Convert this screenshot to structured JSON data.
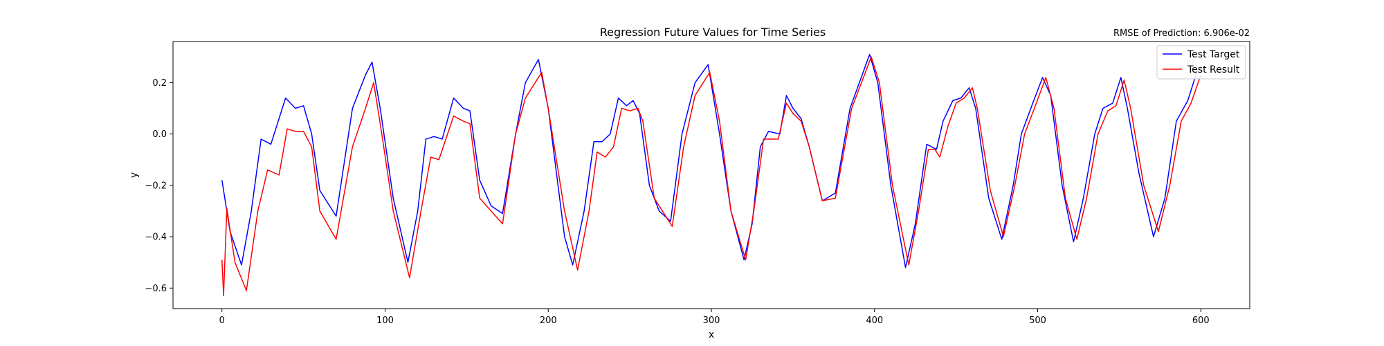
{
  "figure": {
    "title": "Regression Future Values for Time Series",
    "annotation": "RMSE of Prediction: 6.906e-02"
  },
  "chart_data": {
    "type": "line",
    "title": "Regression Future Values for Time Series",
    "xlabel": "x",
    "ylabel": "y",
    "xlim": [
      -30,
      630
    ],
    "ylim": [
      -0.68,
      0.36
    ],
    "xticks": [
      0,
      100,
      200,
      300,
      400,
      500,
      600
    ],
    "yticks": [
      -0.6,
      -0.4,
      -0.2,
      0.0,
      0.2
    ],
    "xtick_labels": [
      "0",
      "100",
      "200",
      "300",
      "400",
      "500",
      "600"
    ],
    "ytick_labels": [
      "−0.6",
      "−0.4",
      "−0.2",
      "0.0",
      "0.2"
    ],
    "grid": false,
    "legend_position": "top-right",
    "series": [
      {
        "name": "Test Target",
        "color": "#0000ff",
        "points": [
          [
            0,
            -0.18
          ],
          [
            5,
            -0.38
          ],
          [
            12,
            -0.51
          ],
          [
            18,
            -0.3
          ],
          [
            24,
            -0.02
          ],
          [
            30,
            -0.04
          ],
          [
            39,
            0.14
          ],
          [
            45,
            0.1
          ],
          [
            50,
            0.11
          ],
          [
            55,
            0.0
          ],
          [
            60,
            -0.22
          ],
          [
            70,
            -0.32
          ],
          [
            80,
            0.1
          ],
          [
            88,
            0.23
          ],
          [
            92,
            0.28
          ],
          [
            97,
            0.1
          ],
          [
            105,
            -0.25
          ],
          [
            114,
            -0.5
          ],
          [
            120,
            -0.3
          ],
          [
            125,
            -0.02
          ],
          [
            130,
            -0.01
          ],
          [
            135,
            -0.02
          ],
          [
            142,
            0.14
          ],
          [
            148,
            0.1
          ],
          [
            152,
            0.09
          ],
          [
            158,
            -0.18
          ],
          [
            165,
            -0.28
          ],
          [
            172,
            -0.31
          ],
          [
            180,
            0.0
          ],
          [
            186,
            0.2
          ],
          [
            194,
            0.29
          ],
          [
            200,
            0.1
          ],
          [
            210,
            -0.4
          ],
          [
            215,
            -0.51
          ],
          [
            222,
            -0.3
          ],
          [
            228,
            -0.03
          ],
          [
            233,
            -0.03
          ],
          [
            238,
            0.0
          ],
          [
            243,
            0.14
          ],
          [
            248,
            0.11
          ],
          [
            252,
            0.13
          ],
          [
            256,
            0.08
          ],
          [
            262,
            -0.2
          ],
          [
            268,
            -0.3
          ],
          [
            275,
            -0.34
          ],
          [
            282,
            0.0
          ],
          [
            290,
            0.2
          ],
          [
            298,
            0.27
          ],
          [
            305,
            0.0
          ],
          [
            312,
            -0.3
          ],
          [
            320,
            -0.49
          ],
          [
            325,
            -0.35
          ],
          [
            330,
            -0.05
          ],
          [
            335,
            0.01
          ],
          [
            342,
            0.0
          ],
          [
            346,
            0.15
          ],
          [
            350,
            0.1
          ],
          [
            355,
            0.06
          ],
          [
            360,
            -0.05
          ],
          [
            368,
            -0.26
          ],
          [
            376,
            -0.23
          ],
          [
            385,
            0.1
          ],
          [
            397,
            0.31
          ],
          [
            402,
            0.2
          ],
          [
            410,
            -0.2
          ],
          [
            419,
            -0.52
          ],
          [
            425,
            -0.35
          ],
          [
            432,
            -0.04
          ],
          [
            438,
            -0.06
          ],
          [
            442,
            0.05
          ],
          [
            448,
            0.13
          ],
          [
            453,
            0.14
          ],
          [
            458,
            0.18
          ],
          [
            462,
            0.1
          ],
          [
            470,
            -0.25
          ],
          [
            478,
            -0.41
          ],
          [
            485,
            -0.2
          ],
          [
            490,
            0.0
          ],
          [
            497,
            0.12
          ],
          [
            503,
            0.22
          ],
          [
            508,
            0.15
          ],
          [
            515,
            -0.2
          ],
          [
            522,
            -0.42
          ],
          [
            528,
            -0.25
          ],
          [
            535,
            0.0
          ],
          [
            540,
            0.1
          ],
          [
            546,
            0.12
          ],
          [
            551,
            0.22
          ],
          [
            555,
            0.1
          ],
          [
            562,
            -0.15
          ],
          [
            571,
            -0.4
          ],
          [
            578,
            -0.25
          ],
          [
            585,
            0.05
          ],
          [
            592,
            0.13
          ],
          [
            598,
            0.25
          ]
        ]
      },
      {
        "name": "Test Result",
        "color": "#ff0000",
        "points": [
          [
            0,
            -0.49
          ],
          [
            1,
            -0.63
          ],
          [
            3,
            -0.29
          ],
          [
            8,
            -0.5
          ],
          [
            15,
            -0.61
          ],
          [
            22,
            -0.3
          ],
          [
            28,
            -0.14
          ],
          [
            35,
            -0.16
          ],
          [
            40,
            0.02
          ],
          [
            45,
            0.01
          ],
          [
            50,
            0.01
          ],
          [
            55,
            -0.05
          ],
          [
            60,
            -0.3
          ],
          [
            70,
            -0.41
          ],
          [
            80,
            -0.05
          ],
          [
            88,
            0.1
          ],
          [
            93,
            0.2
          ],
          [
            98,
            0.0
          ],
          [
            105,
            -0.3
          ],
          [
            115,
            -0.56
          ],
          [
            122,
            -0.3
          ],
          [
            128,
            -0.09
          ],
          [
            133,
            -0.1
          ],
          [
            142,
            0.07
          ],
          [
            148,
            0.05
          ],
          [
            152,
            0.04
          ],
          [
            158,
            -0.25
          ],
          [
            165,
            -0.3
          ],
          [
            172,
            -0.35
          ],
          [
            180,
            0.0
          ],
          [
            186,
            0.14
          ],
          [
            196,
            0.24
          ],
          [
            200,
            0.1
          ],
          [
            210,
            -0.3
          ],
          [
            218,
            -0.53
          ],
          [
            225,
            -0.3
          ],
          [
            230,
            -0.07
          ],
          [
            235,
            -0.09
          ],
          [
            240,
            -0.05
          ],
          [
            245,
            0.1
          ],
          [
            250,
            0.09
          ],
          [
            255,
            0.1
          ],
          [
            258,
            0.05
          ],
          [
            265,
            -0.25
          ],
          [
            270,
            -0.3
          ],
          [
            276,
            -0.36
          ],
          [
            283,
            -0.05
          ],
          [
            290,
            0.15
          ],
          [
            299,
            0.24
          ],
          [
            305,
            0.05
          ],
          [
            312,
            -0.3
          ],
          [
            321,
            -0.49
          ],
          [
            326,
            -0.3
          ],
          [
            332,
            -0.02
          ],
          [
            337,
            -0.02
          ],
          [
            341,
            -0.02
          ],
          [
            346,
            0.12
          ],
          [
            350,
            0.08
          ],
          [
            355,
            0.05
          ],
          [
            360,
            -0.05
          ],
          [
            368,
            -0.26
          ],
          [
            376,
            -0.25
          ],
          [
            386,
            0.1
          ],
          [
            398,
            0.3
          ],
          [
            403,
            0.2
          ],
          [
            411,
            -0.2
          ],
          [
            421,
            -0.51
          ],
          [
            427,
            -0.3
          ],
          [
            433,
            -0.06
          ],
          [
            437,
            -0.06
          ],
          [
            440,
            -0.09
          ],
          [
            445,
            0.03
          ],
          [
            450,
            0.12
          ],
          [
            455,
            0.14
          ],
          [
            460,
            0.18
          ],
          [
            463,
            0.1
          ],
          [
            471,
            -0.22
          ],
          [
            479,
            -0.4
          ],
          [
            486,
            -0.2
          ],
          [
            492,
            0.0
          ],
          [
            498,
            0.1
          ],
          [
            505,
            0.22
          ],
          [
            510,
            0.1
          ],
          [
            517,
            -0.25
          ],
          [
            524,
            -0.41
          ],
          [
            530,
            -0.25
          ],
          [
            537,
            0.0
          ],
          [
            543,
            0.09
          ],
          [
            548,
            0.11
          ],
          [
            553,
            0.21
          ],
          [
            557,
            0.1
          ],
          [
            565,
            -0.2
          ],
          [
            574,
            -0.38
          ],
          [
            581,
            -0.2
          ],
          [
            588,
            0.05
          ],
          [
            594,
            0.12
          ],
          [
            600,
            0.23
          ]
        ]
      }
    ]
  }
}
